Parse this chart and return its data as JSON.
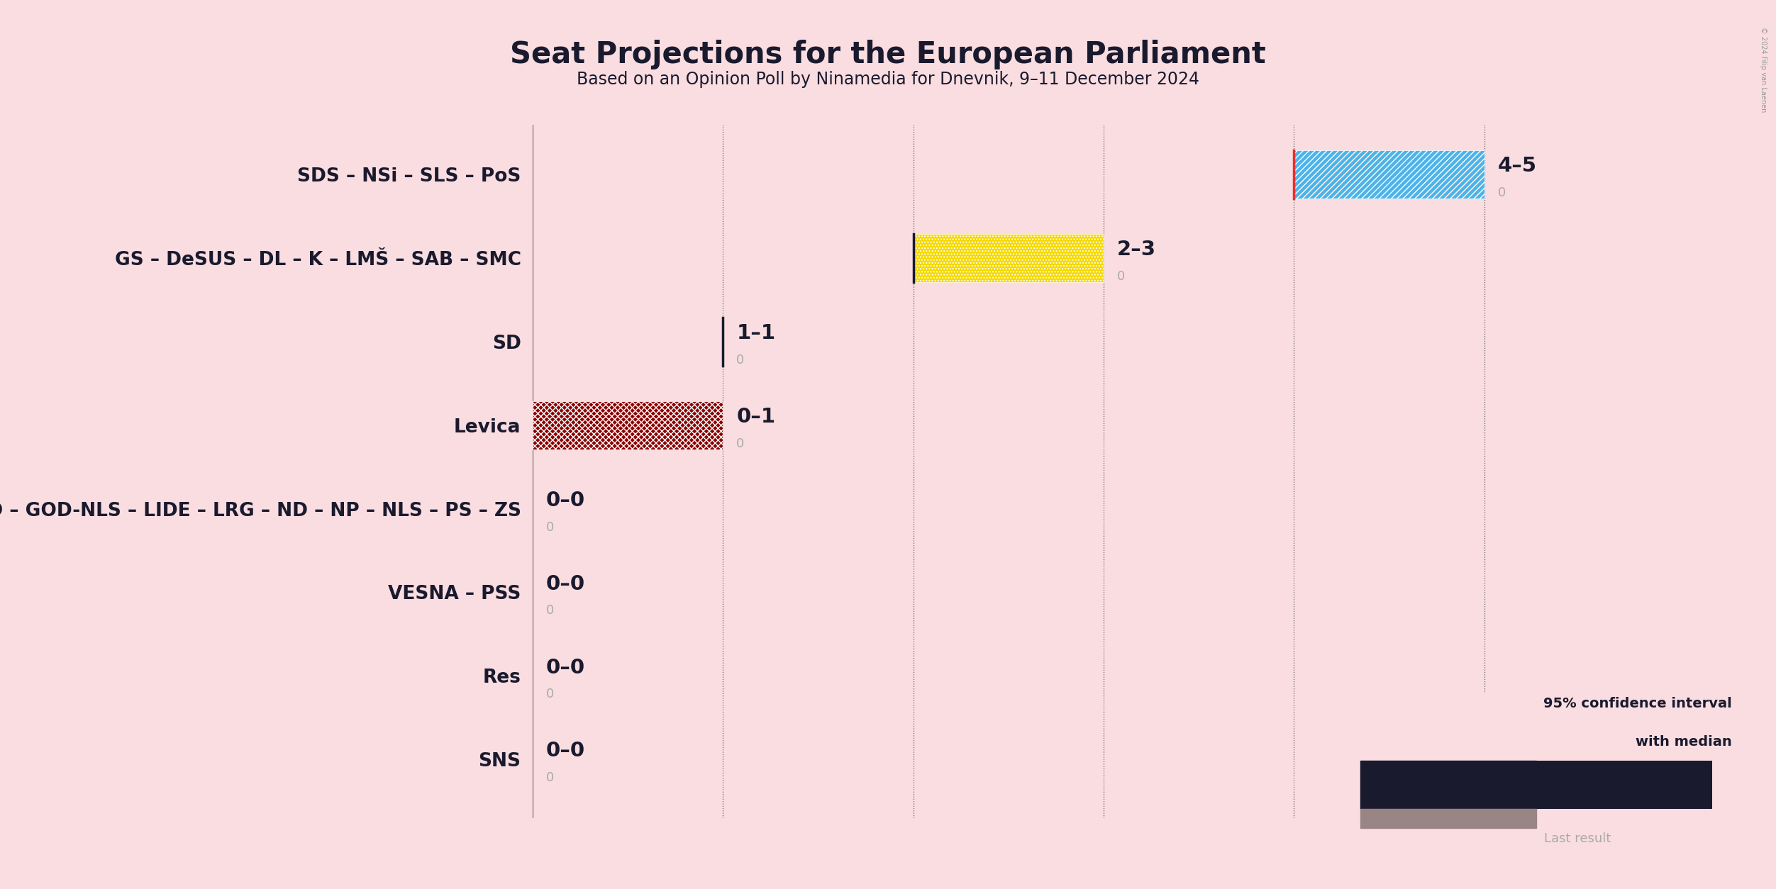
{
  "title": "Seat Projections for the European Parliament",
  "subtitle": "Based on an Opinion Poll by Ninamedia for Dnevnik, 9–11 December 2024",
  "background_color": "#f9dde0",
  "parties": [
    "SDS – NSi – SLS – PoS",
    "GS – DeSUS – DL – K – LMŠ – SAB – SMC",
    "SD",
    "Levica",
    "Demokrati – DD – GOD – GOD-NLS – LIDE – LRG – ND – NP – NLS – PS – ZS",
    "VESNA – PSS",
    "Res",
    "SNS"
  ],
  "median": [
    4,
    2,
    1,
    0,
    0,
    0,
    0,
    0
  ],
  "low": [
    4,
    2,
    1,
    0,
    0,
    0,
    0,
    0
  ],
  "high": [
    5,
    3,
    1,
    1,
    0,
    0,
    0,
    0
  ],
  "last_result": [
    0,
    0,
    0,
    0,
    0,
    0,
    0,
    0
  ],
  "labels": [
    "4–5",
    "2–3",
    "1–1",
    "0–1",
    "0–0",
    "0–0",
    "0–0",
    "0–0"
  ],
  "solid_colors": [
    "#4db3e8",
    "#f5d800",
    "#ff0000",
    "#8b0000",
    null,
    null,
    null,
    null
  ],
  "ci_colors": [
    "#4db3e8",
    "#f5d800",
    null,
    "#8b0000",
    null,
    null,
    null,
    null
  ],
  "ci_hatch": [
    "////",
    "....",
    null,
    "xxxx",
    null,
    null,
    null,
    null
  ],
  "median_line_colors": [
    "#e53030",
    "#1a1a2e",
    "#1a1a2e",
    null,
    null,
    null,
    null,
    null
  ],
  "x_max": 6,
  "xlim_max": 5.6,
  "title_fontsize": 30,
  "subtitle_fontsize": 17,
  "label_fontsize": 21,
  "last_result_fontsize": 13,
  "ytick_fontsize": 19,
  "bar_height": 0.58,
  "copyright": "© 2024 Filip van Laenen"
}
